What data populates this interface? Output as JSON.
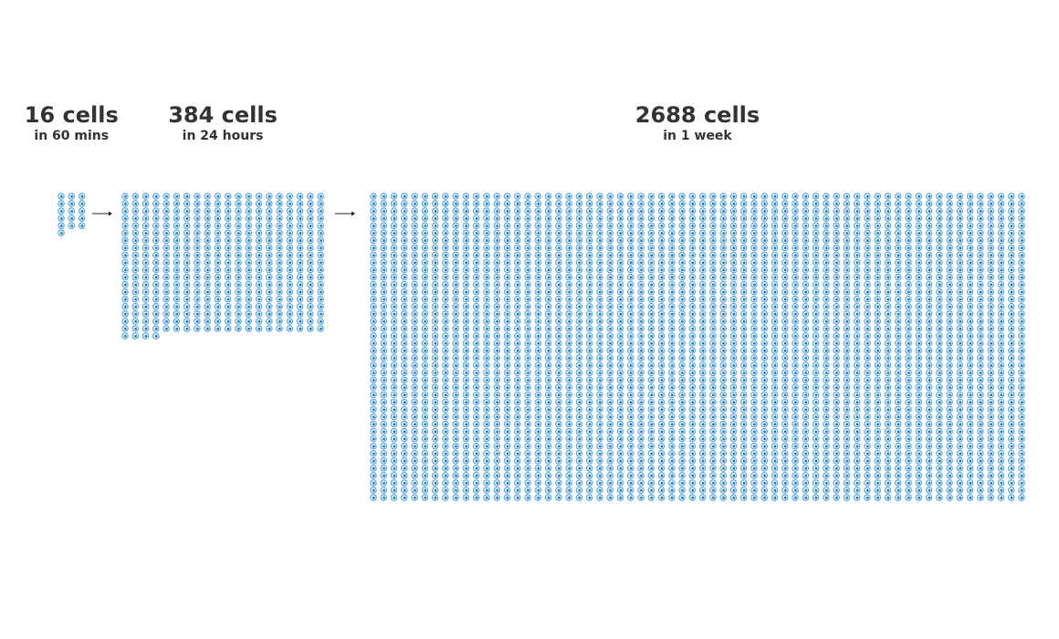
{
  "chart_data": {
    "type": "pictograph",
    "categories": [
      "in 60 mins",
      "in 24 hours",
      "in 1 week"
    ],
    "values": [
      16,
      384,
      2688
    ],
    "value_labels": [
      "16 cells",
      "384 cells",
      "2688 cells"
    ],
    "color": "#4a9fd8"
  }
}
